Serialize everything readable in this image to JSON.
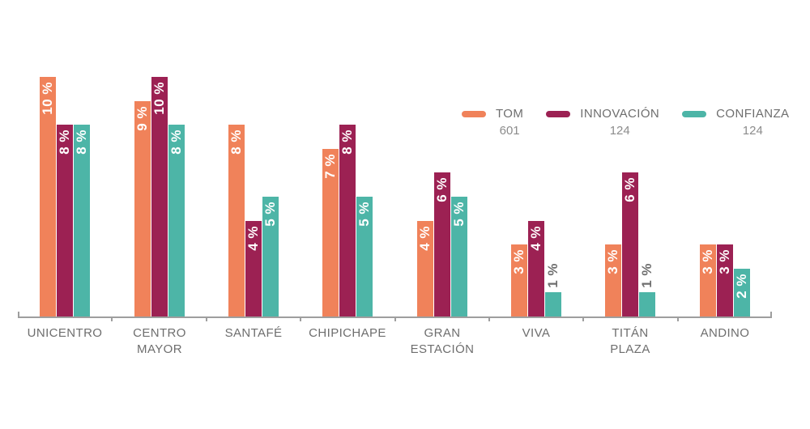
{
  "chart_data": {
    "type": "bar",
    "title": "",
    "xlabel": "",
    "ylabel": "",
    "unit": "%",
    "ylim": [
      0,
      10
    ],
    "grid": false,
    "legend_position": "top-right",
    "categories": [
      "UNICENTRO",
      "CENTRO MAYOR",
      "SANTAFÉ",
      "CHIPICHAPE",
      "GRAN ESTACIÓN",
      "VIVA",
      "TITÁN PLAZA",
      "ANDINO"
    ],
    "category_lines": [
      [
        "UNICENTRO"
      ],
      [
        "CENTRO",
        "MAYOR"
      ],
      [
        "SANTAFÉ"
      ],
      [
        "CHIPICHAPE"
      ],
      [
        "GRAN",
        "ESTACIÓN"
      ],
      [
        "VIVA"
      ],
      [
        "TITÁN",
        "PLAZA"
      ],
      [
        "ANDINO"
      ]
    ],
    "series": [
      {
        "name": "TOM",
        "count": "601",
        "color": "#F0825A",
        "values": [
          10,
          9,
          8,
          7,
          4,
          3,
          3,
          3
        ],
        "labels": [
          "10 %",
          "9 %",
          "8 %",
          "7 %",
          "4 %",
          "3 %",
          "3 %",
          "3 %"
        ]
      },
      {
        "name": "INNOVACIÓN",
        "count": "124",
        "color": "#9C2153",
        "values": [
          8,
          10,
          4,
          8,
          6,
          4,
          6,
          3
        ],
        "labels": [
          "8 %",
          "10 %",
          "4 %",
          "8 %",
          "6 %",
          "4 %",
          "6 %",
          "3 %"
        ]
      },
      {
        "name": "CONFIANZA",
        "count": "124",
        "color": "#4DB5A7",
        "values": [
          8,
          8,
          5,
          5,
          5,
          1,
          1,
          2
        ],
        "labels": [
          "8 %",
          "8 %",
          "5 %",
          "5 %",
          "5 %",
          "1 %",
          "1 %",
          "2 %"
        ]
      }
    ]
  },
  "style": {
    "axis_color": "#9E9E9E",
    "category_label_color": "#6E6E6E",
    "outside_value_label_color": "#6E6E6E",
    "inside_value_label_color": "#FFFFFF",
    "legend_name_color": "#6E6E6E",
    "legend_count_color": "#8C8C8C"
  }
}
